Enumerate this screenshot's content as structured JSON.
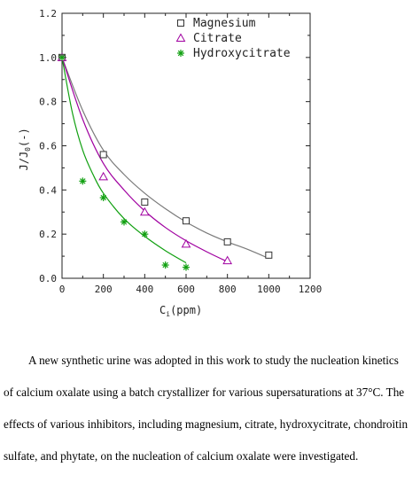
{
  "chart_data": {
    "type": "scatter",
    "xlabel": "C",
    "xlabel_sub": "i",
    "xlabel_unit": "(ppm)",
    "ylabel": "J/J",
    "ylabel_sub": "0",
    "ylabel_unit": "(-)",
    "xlim": [
      0,
      1200
    ],
    "ylim": [
      0,
      1.2
    ],
    "x_ticks": [
      "0",
      "200",
      "400",
      "600",
      "800",
      "1000",
      "1200"
    ],
    "y_ticks": [
      "0.0",
      "0.2",
      "0.4",
      "0.6",
      "0.8",
      "1.0",
      "1.2"
    ],
    "legend_position": "top-right",
    "grid": false,
    "series": [
      {
        "name": "Magnesium",
        "marker": "square",
        "color": "#333333",
        "line_color": "#7a7a7a",
        "points": [
          [
            0,
            1.0
          ],
          [
            200,
            0.56
          ],
          [
            400,
            0.345
          ],
          [
            600,
            0.26
          ],
          [
            800,
            0.165
          ],
          [
            1000,
            0.105
          ]
        ],
        "fit": [
          [
            0,
            1.0
          ],
          [
            100,
            0.76
          ],
          [
            200,
            0.58
          ],
          [
            300,
            0.47
          ],
          [
            400,
            0.385
          ],
          [
            500,
            0.315
          ],
          [
            600,
            0.255
          ],
          [
            700,
            0.205
          ],
          [
            800,
            0.165
          ],
          [
            900,
            0.13
          ],
          [
            1000,
            0.09
          ]
        ]
      },
      {
        "name": "Citrate",
        "marker": "triangle",
        "color": "#a000a0",
        "line_color": "#a000a0",
        "points": [
          [
            0,
            1.0
          ],
          [
            200,
            0.46
          ],
          [
            400,
            0.3
          ],
          [
            600,
            0.155
          ],
          [
            800,
            0.08
          ]
        ],
        "fit": [
          [
            0,
            1.0
          ],
          [
            100,
            0.72
          ],
          [
            200,
            0.52
          ],
          [
            300,
            0.4
          ],
          [
            400,
            0.305
          ],
          [
            500,
            0.23
          ],
          [
            600,
            0.17
          ],
          [
            700,
            0.12
          ],
          [
            800,
            0.075
          ]
        ]
      },
      {
        "name": "Hydroxycitrate",
        "marker": "asterisk",
        "color": "#11a011",
        "line_color": "#11a011",
        "points": [
          [
            0,
            1.0
          ],
          [
            100,
            0.44
          ],
          [
            200,
            0.365
          ],
          [
            300,
            0.255
          ],
          [
            400,
            0.2
          ],
          [
            500,
            0.06
          ],
          [
            600,
            0.05
          ]
        ],
        "fit": [
          [
            0,
            1.0
          ],
          [
            50,
            0.75
          ],
          [
            100,
            0.58
          ],
          [
            150,
            0.47
          ],
          [
            200,
            0.385
          ],
          [
            300,
            0.27
          ],
          [
            400,
            0.19
          ],
          [
            500,
            0.125
          ],
          [
            600,
            0.07
          ]
        ]
      }
    ]
  },
  "abstract": {
    "lines": [
      "A new synthetic urine was adopted in this work to study the nucleation kinetics",
      "of calcium oxalate using a batch crystallizer for various supersaturations at  37°C. The",
      "effects of various inhibitors, including magnesium, citrate, hydroxycitrate, chondroitin",
      "sulfate, and phytate, on the nucleation of calcium oxalate were investigated."
    ]
  }
}
